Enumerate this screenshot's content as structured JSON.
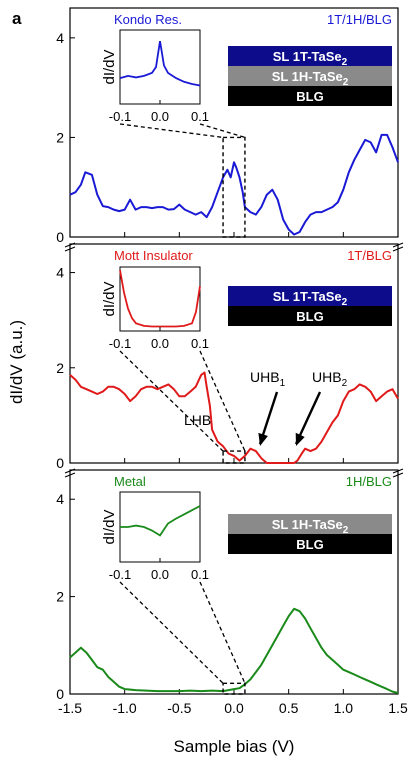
{
  "panel_label": "a",
  "x_axis": {
    "label": "Sample bias (V)",
    "range": [
      -1.5,
      1.5
    ],
    "ticks": [
      -1.5,
      -1.0,
      -0.5,
      0.0,
      0.5,
      1.0,
      1.5
    ],
    "tick_labels": [
      "-1.5",
      "-1.0",
      "-0.5",
      "0.0",
      "0.5",
      "1.0",
      "1.5"
    ]
  },
  "y_axis_label": "dI/dV (a.u.)",
  "chart_data": [
    {
      "type": "line",
      "panel": "top",
      "title": "Kondo Res.",
      "right_label": "1T/1H/BLG",
      "color": "#1a1ad6",
      "ylim": [
        0,
        4.6
      ],
      "y_ticks": [
        0,
        2,
        4
      ],
      "x": [
        -1.5,
        -1.45,
        -1.4,
        -1.36,
        -1.3,
        -1.25,
        -1.2,
        -1.15,
        -1.1,
        -1.05,
        -1.0,
        -0.95,
        -0.9,
        -0.85,
        -0.8,
        -0.75,
        -0.7,
        -0.65,
        -0.6,
        -0.55,
        -0.5,
        -0.45,
        -0.4,
        -0.35,
        -0.3,
        -0.25,
        -0.2,
        -0.15,
        -0.1,
        -0.06,
        -0.03,
        0.0,
        0.02,
        0.05,
        0.08,
        0.1,
        0.15,
        0.2,
        0.25,
        0.3,
        0.35,
        0.4,
        0.45,
        0.5,
        0.55,
        0.6,
        0.65,
        0.7,
        0.75,
        0.8,
        0.85,
        0.9,
        0.95,
        1.0,
        1.05,
        1.1,
        1.15,
        1.2,
        1.25,
        1.3,
        1.35,
        1.4,
        1.45,
        1.5
      ],
      "values": [
        0.85,
        0.9,
        1.05,
        1.3,
        1.25,
        0.85,
        0.62,
        0.6,
        0.55,
        0.52,
        0.55,
        0.75,
        0.55,
        0.6,
        0.6,
        0.58,
        0.6,
        0.6,
        0.55,
        0.56,
        0.65,
        0.55,
        0.5,
        0.45,
        0.5,
        0.4,
        0.6,
        0.9,
        1.2,
        1.35,
        1.2,
        1.5,
        1.4,
        1.2,
        0.9,
        0.6,
        0.5,
        0.45,
        0.6,
        0.85,
        0.95,
        0.75,
        0.35,
        0.15,
        0.05,
        0.1,
        0.3,
        0.45,
        0.5,
        0.5,
        0.55,
        0.6,
        0.7,
        0.95,
        1.3,
        1.55,
        1.75,
        1.95,
        1.9,
        1.7,
        2.05,
        2.05,
        1.8,
        1.5
      ],
      "inset": {
        "ylabel": "dI/dV",
        "x_tick_labels": [
          "-0.1",
          "0.0",
          "0.1"
        ],
        "x": [
          -0.1,
          -0.08,
          -0.06,
          -0.04,
          -0.02,
          -0.01,
          0.0,
          0.01,
          0.02,
          0.04,
          0.06,
          0.08,
          0.1
        ],
        "values": [
          0.35,
          0.38,
          0.36,
          0.38,
          0.42,
          0.5,
          0.85,
          0.52,
          0.42,
          0.35,
          0.3,
          0.27,
          0.25
        ]
      },
      "layers": [
        {
          "label": "SL 1T-TaSe",
          "sub": "2",
          "fill": "#0d0d8c",
          "text_color": "#ffffff"
        },
        {
          "label": "SL 1H-TaSe",
          "sub": "2",
          "fill": "#8a8a8a",
          "text_color": "#ffffff"
        },
        {
          "label": "BLG",
          "sub": "",
          "fill": "#000000",
          "text_color": "#ffffff"
        }
      ]
    },
    {
      "type": "line",
      "panel": "middle",
      "title": "Mott Insulator",
      "right_label": "1T/BLG",
      "color": "#e01a1a",
      "ylim": [
        0,
        4.6
      ],
      "y_ticks": [
        0,
        2,
        4
      ],
      "x": [
        -1.5,
        -1.45,
        -1.4,
        -1.35,
        -1.3,
        -1.25,
        -1.2,
        -1.15,
        -1.1,
        -1.05,
        -1.0,
        -0.95,
        -0.9,
        -0.85,
        -0.8,
        -0.75,
        -0.7,
        -0.65,
        -0.6,
        -0.55,
        -0.5,
        -0.45,
        -0.4,
        -0.35,
        -0.3,
        -0.27,
        -0.25,
        -0.22,
        -0.2,
        -0.15,
        -0.1,
        -0.05,
        0.0,
        0.05,
        0.1,
        0.15,
        0.2,
        0.25,
        0.3,
        0.35,
        0.4,
        0.45,
        0.5,
        0.55,
        0.58,
        0.62,
        0.65,
        0.7,
        0.75,
        0.8,
        0.85,
        0.9,
        0.95,
        1.0,
        1.05,
        1.1,
        1.15,
        1.2,
        1.25,
        1.3,
        1.35,
        1.4,
        1.45,
        1.5
      ],
      "values": [
        1.85,
        1.75,
        1.6,
        1.55,
        1.5,
        1.45,
        1.5,
        1.6,
        1.6,
        1.55,
        1.45,
        1.3,
        1.4,
        1.55,
        1.6,
        1.6,
        1.55,
        1.6,
        1.65,
        1.55,
        1.4,
        1.4,
        1.5,
        1.6,
        1.85,
        1.9,
        1.6,
        1.2,
        0.7,
        0.45,
        0.35,
        0.2,
        0.15,
        0.05,
        0.15,
        0.3,
        0.25,
        0.1,
        0.0,
        0.0,
        0.0,
        0.0,
        0.0,
        0.0,
        0.05,
        0.2,
        0.3,
        0.25,
        0.3,
        0.45,
        0.65,
        0.85,
        1.0,
        1.3,
        1.5,
        1.55,
        1.65,
        1.6,
        1.5,
        1.3,
        1.4,
        1.5,
        1.55,
        1.35
      ],
      "inset": {
        "ylabel": "dI/dV",
        "x_tick_labels": [
          "-0.1",
          "0.0",
          "0.1"
        ],
        "x": [
          -0.1,
          -0.09,
          -0.08,
          -0.07,
          -0.06,
          -0.04,
          -0.02,
          0.0,
          0.02,
          0.04,
          0.06,
          0.08,
          0.09,
          0.1
        ],
        "values": [
          0.95,
          0.6,
          0.35,
          0.2,
          0.12,
          0.08,
          0.07,
          0.07,
          0.07,
          0.07,
          0.08,
          0.12,
          0.3,
          0.7
        ]
      },
      "layers": [
        {
          "label": "SL 1T-TaSe",
          "sub": "2",
          "fill": "#0d0d8c",
          "text_color": "#ffffff"
        },
        {
          "label": "BLG",
          "sub": "",
          "fill": "#000000",
          "text_color": "#ffffff"
        }
      ],
      "annotations": [
        {
          "label": "LHB",
          "sub": ""
        },
        {
          "label": "UHB",
          "sub": "1"
        },
        {
          "label": "UHB",
          "sub": "2"
        }
      ]
    },
    {
      "type": "line",
      "panel": "bottom",
      "title": "Metal",
      "right_label": "1H/BLG",
      "color": "#1a8a1a",
      "ylim": [
        0,
        4.6
      ],
      "y_ticks": [
        0,
        2,
        4
      ],
      "x": [
        -1.5,
        -1.45,
        -1.4,
        -1.35,
        -1.3,
        -1.25,
        -1.2,
        -1.15,
        -1.1,
        -1.05,
        -1.0,
        -0.9,
        -0.8,
        -0.7,
        -0.6,
        -0.5,
        -0.4,
        -0.3,
        -0.2,
        -0.1,
        0.0,
        0.05,
        0.1,
        0.15,
        0.2,
        0.25,
        0.3,
        0.35,
        0.4,
        0.45,
        0.5,
        0.55,
        0.6,
        0.65,
        0.7,
        0.75,
        0.8,
        0.85,
        0.9,
        0.95,
        1.0,
        1.05,
        1.1,
        1.15,
        1.2,
        1.25,
        1.3,
        1.35,
        1.4,
        1.45,
        1.5
      ],
      "values": [
        0.75,
        0.85,
        0.95,
        0.85,
        0.7,
        0.55,
        0.5,
        0.35,
        0.25,
        0.15,
        0.1,
        0.08,
        0.07,
        0.06,
        0.06,
        0.06,
        0.07,
        0.06,
        0.07,
        0.06,
        0.1,
        0.12,
        0.2,
        0.3,
        0.45,
        0.6,
        0.8,
        1.0,
        1.2,
        1.4,
        1.6,
        1.75,
        1.7,
        1.55,
        1.35,
        1.15,
        0.95,
        0.8,
        0.7,
        0.6,
        0.5,
        0.45,
        0.4,
        0.35,
        0.3,
        0.25,
        0.2,
        0.15,
        0.1,
        0.05,
        0.02
      ],
      "inset": {
        "ylabel": "dI/dV",
        "x_tick_labels": [
          "-0.1",
          "0.0",
          "0.1"
        ],
        "x": [
          -0.1,
          -0.08,
          -0.06,
          -0.04,
          -0.02,
          0.0,
          0.02,
          0.04,
          0.06,
          0.08,
          0.1
        ],
        "values": [
          0.5,
          0.5,
          0.52,
          0.5,
          0.45,
          0.38,
          0.55,
          0.62,
          0.68,
          0.74,
          0.8
        ]
      },
      "layers": [
        {
          "label": "SL 1H-TaSe",
          "sub": "2",
          "fill": "#8a8a8a",
          "text_color": "#ffffff"
        },
        {
          "label": "BLG",
          "sub": "",
          "fill": "#000000",
          "text_color": "#ffffff"
        }
      ]
    }
  ]
}
